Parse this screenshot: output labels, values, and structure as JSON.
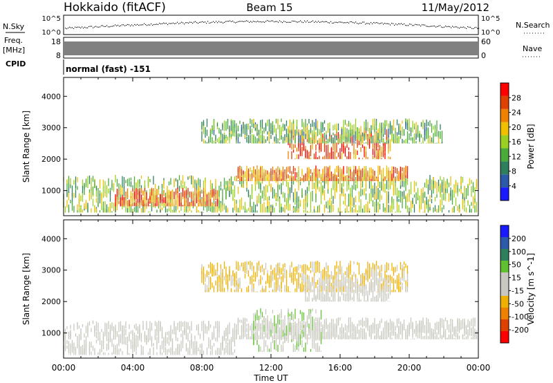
{
  "header": {
    "station": "Hokkaido (fitACF)",
    "beam": "Beam 15",
    "date": "11/May/2012"
  },
  "meta_panels": {
    "nsky_label": "N.Sky",
    "nsky_ticks": [
      "10^5",
      "10^0"
    ],
    "freq_label": "Freq.",
    "freq_unit": "[MHz]",
    "freq_ticks": [
      "18",
      "8"
    ],
    "cpid_label": "CPID",
    "cpid_text": "normal (fast) -151",
    "nsearch_label": "N.Search",
    "nsearch_ticks": [
      "10^5",
      "10^0"
    ],
    "nave_label": "Nave",
    "nave_ticks": [
      "60",
      "0"
    ]
  },
  "colors": {
    "power_scale": [
      "#1a1aff",
      "#2a5aa8",
      "#2f7f5f",
      "#4aaa3a",
      "#9ad020",
      "#f0c000",
      "#f08000",
      "#e04000",
      "#ff0000"
    ],
    "velocity_scale": [
      "#ff0000",
      "#e04000",
      "#f08000",
      "#f0b000",
      "#c8c8c0",
      "#c8c8c0",
      "#60c030",
      "#2f7f5f",
      "#2a5aa8",
      "#1a1aff"
    ]
  },
  "chart_data": [
    {
      "type": "heatmap",
      "title": "",
      "xlabel": "",
      "ylabel": "Slant Range [km]",
      "ylim": [
        200,
        4600
      ],
      "y_ticks": [
        "1000",
        "2000",
        "3000",
        "4000"
      ],
      "colorbar_label": "Power [dB]",
      "colorbar_ticks": [
        "4",
        "8",
        "12",
        "16",
        "20",
        "24",
        "28"
      ],
      "colorbar_range": [
        0,
        30
      ],
      "echo_regions": [
        {
          "t_start": 0,
          "t_end": 24,
          "range_low": 300,
          "range_high": 1500,
          "value": 14
        },
        {
          "t_start": 3,
          "t_end": 9,
          "range_low": 500,
          "range_high": 1100,
          "value": 24
        },
        {
          "t_start": 10,
          "t_end": 20,
          "range_low": 1300,
          "range_high": 1800,
          "value": 22
        },
        {
          "t_start": 13,
          "t_end": 19,
          "range_low": 2000,
          "range_high": 3000,
          "value": 24
        },
        {
          "t_start": 8,
          "t_end": 22,
          "range_low": 2500,
          "range_high": 3300,
          "value": 12
        }
      ]
    },
    {
      "type": "heatmap",
      "title": "",
      "xlabel": "Time UT",
      "ylabel": "Slant Range [km]",
      "ylim": [
        200,
        4600
      ],
      "y_ticks": [
        "1000",
        "2000",
        "3000",
        "4000"
      ],
      "x_ticks": [
        "00:00",
        "04:00",
        "08:00",
        "12:00",
        "16:00",
        "20:00",
        "00:00"
      ],
      "colorbar_label": "Velocity [m s^-1]",
      "colorbar_ticks": [
        "-200",
        "-100",
        "-50",
        "-15",
        "15",
        "50",
        "100",
        "200"
      ],
      "colorbar_range": [
        -250,
        250
      ],
      "echo_regions": [
        {
          "t_start": 0,
          "t_end": 10,
          "range_low": 300,
          "range_high": 1400,
          "value": 0
        },
        {
          "t_start": 10,
          "t_end": 24,
          "range_low": 800,
          "range_high": 1500,
          "value": 0
        },
        {
          "t_start": 11,
          "t_end": 15,
          "range_low": 400,
          "range_high": 1800,
          "value": 40
        },
        {
          "t_start": 8,
          "t_end": 20,
          "range_low": 2300,
          "range_high": 3300,
          "value": -60
        },
        {
          "t_start": 14,
          "t_end": 19,
          "range_low": 2000,
          "range_high": 2800,
          "value": 0
        }
      ]
    }
  ]
}
